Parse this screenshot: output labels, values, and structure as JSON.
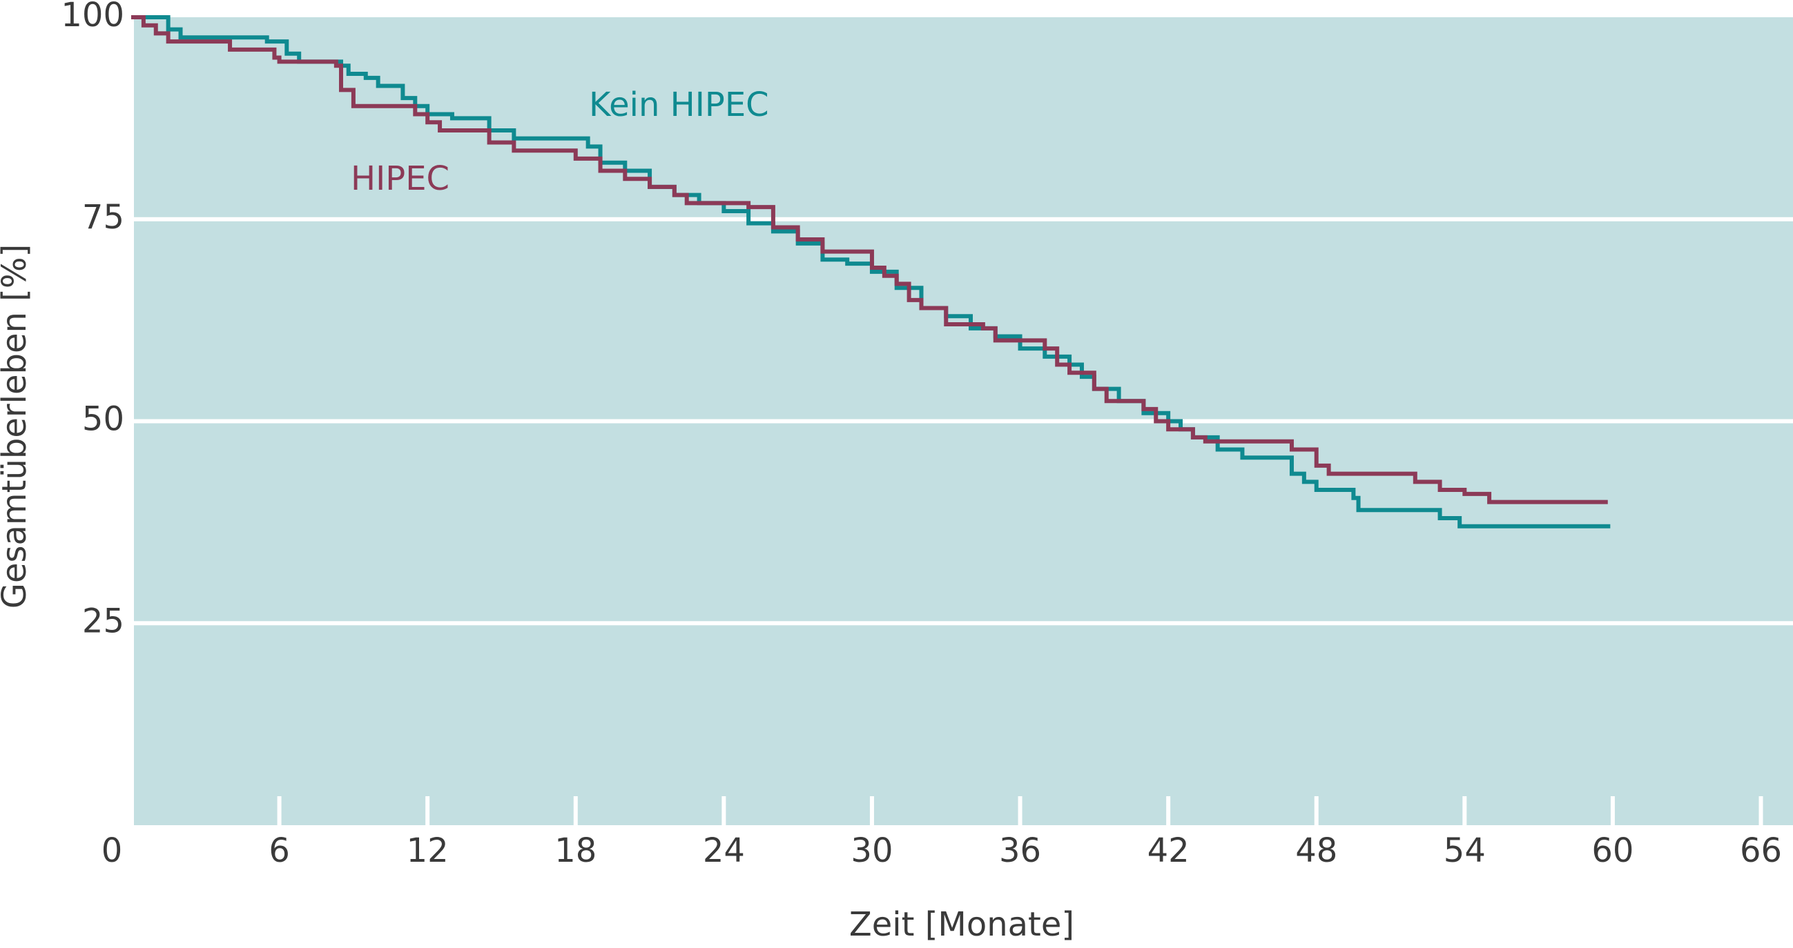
{
  "chart_data": {
    "type": "line",
    "step": "post",
    "xlabel": "Zeit [Monate]",
    "ylabel": "Gesamtüberleben [%]",
    "xlim": [
      0,
      67.3
    ],
    "xticks": [
      0,
      6,
      12,
      18,
      24,
      30,
      36,
      42,
      48,
      54,
      60,
      66
    ],
    "ylim": [
      0,
      100
    ],
    "yticks": [
      25,
      50,
      75,
      100
    ],
    "grid": true,
    "background": "#c3dfe1",
    "annotations": [
      "Kein HIPEC",
      "HIPEC"
    ],
    "series": [
      {
        "name": "Kein HIPEC",
        "color": "#0f8a90",
        "x": [
          0,
          1.5,
          2,
          5.5,
          6.3,
          6.8,
          8.5,
          8.8,
          9.5,
          10,
          11,
          11.5,
          12,
          13,
          14.5,
          15.5,
          18.5,
          19,
          20,
          21,
          22,
          23,
          24,
          25,
          26,
          27,
          28,
          29,
          30,
          31,
          32,
          33,
          34,
          35,
          36,
          37,
          38,
          38.5,
          39,
          40,
          41,
          42,
          42.5,
          43,
          44,
          45,
          47,
          47.5,
          48,
          49.5,
          49.7,
          53,
          53.8,
          59.9
        ],
        "values": [
          100,
          98.5,
          97.5,
          97,
          95.5,
          94.5,
          94,
          93,
          92.5,
          91.5,
          90,
          89,
          88,
          87.5,
          86,
          85,
          84,
          82,
          81,
          79,
          78,
          77,
          76,
          74.5,
          73.5,
          72,
          70,
          69.5,
          68.5,
          66.5,
          64,
          63,
          61.5,
          60.5,
          59,
          58,
          57,
          55.5,
          54,
          52.5,
          51,
          50,
          49,
          48,
          46.5,
          45.5,
          43.5,
          42.5,
          41.5,
          40.5,
          39,
          38,
          37,
          37
        ]
      },
      {
        "name": "HIPEC",
        "color": "#8c3a57",
        "x": [
          0,
          0.5,
          1,
          1.5,
          4,
          5.8,
          6,
          8.3,
          8.5,
          9,
          11.5,
          12,
          12.5,
          14.5,
          15.5,
          18,
          19,
          20,
          21,
          22,
          22.5,
          25,
          26,
          27,
          28,
          30,
          30.5,
          31,
          31.5,
          32,
          33,
          34.5,
          35,
          37,
          37.5,
          38,
          39,
          39.5,
          41,
          41.5,
          42,
          43,
          43.5,
          47,
          48,
          48.5,
          52,
          53,
          54,
          55,
          59.8
        ],
        "values": [
          100,
          99,
          98,
          97,
          96,
          95,
          94.5,
          94,
          91,
          89,
          88,
          87,
          86,
          84.5,
          83.5,
          82.5,
          81,
          80,
          79,
          78,
          77,
          76.5,
          74,
          72.5,
          71,
          69,
          68,
          67,
          65,
          64,
          62,
          61.5,
          60,
          59,
          57,
          56,
          54,
          52.5,
          51.5,
          50,
          49,
          48,
          47.5,
          46.5,
          44.5,
          43.5,
          42.5,
          41.5,
          41,
          40,
          40
        ]
      }
    ]
  }
}
